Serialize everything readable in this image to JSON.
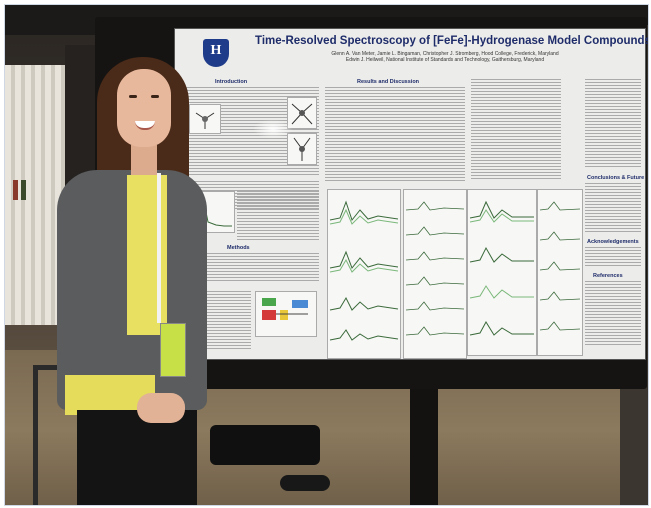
{
  "poster": {
    "title": "Time-Resolved Spectroscopy of [FeFe]-Hydrogenase Model Compounds",
    "authors_line1": "Glenn A. Van Meter, Jamie L. Bingaman, Christopher J. Stromberg, Hood College, Frederick, Maryland",
    "authors_line2": "Edwin J. Heilweil, National Institute of Standards and Technology, Gaithersburg, Maryland",
    "sections": {
      "introduction": "Introduction",
      "results": "Results and Discussion",
      "methods": "Methods",
      "conclusions": "Conclusions & Future",
      "acknowledgements": "Acknowledgements",
      "references": "References"
    }
  },
  "colors": {
    "title_blue": "#1e2c6a",
    "logo_blue": "#1e3c8a",
    "jacket_gray": "#5a5c5e",
    "shirt_yellow": "#e8e060",
    "badge_green": "#c8e048"
  }
}
